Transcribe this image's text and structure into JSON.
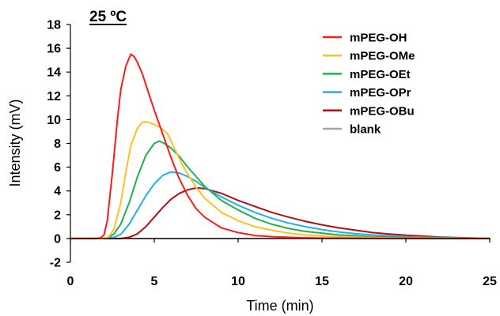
{
  "chart_data": {
    "type": "line",
    "title": "",
    "annotation": "25 ºC",
    "xlabel": "Time (min)",
    "ylabel": "Intensity (mV)",
    "xlim": [
      0,
      25
    ],
    "ylim": [
      -2,
      18
    ],
    "xticks": [
      "0",
      "5",
      "10",
      "15",
      "20",
      "25"
    ],
    "yticks": [
      "-2",
      "0",
      "2",
      "4",
      "6",
      "8",
      "10",
      "12",
      "14",
      "16",
      "18"
    ],
    "grid": false,
    "legend_position": "top-right",
    "series": [
      {
        "name": "mPEG-OH",
        "color": "#ff1a1a",
        "x": [
          0,
          1.5,
          1.8,
          2.0,
          2.2,
          2.5,
          2.8,
          3.0,
          3.3,
          3.6,
          3.8,
          4.0,
          4.3,
          4.6,
          5.0,
          5.5,
          6.0,
          6.5,
          7.0,
          7.5,
          8.0,
          9.0,
          10.0,
          11.0,
          12.0,
          13.0,
          14.0,
          15.0,
          17.0,
          25.0
        ],
        "y": [
          0,
          0,
          0.05,
          0.3,
          1.5,
          5.5,
          10.0,
          12.5,
          14.5,
          15.5,
          15.3,
          14.8,
          13.8,
          12.5,
          10.8,
          8.8,
          6.8,
          5.0,
          3.6,
          2.5,
          1.8,
          0.9,
          0.5,
          0.25,
          0.15,
          0.1,
          0.05,
          0.03,
          0.02,
          0
        ]
      },
      {
        "name": "mPEG-OMe",
        "color": "#ffc020",
        "x": [
          0,
          2.0,
          2.3,
          2.6,
          3.0,
          3.3,
          3.6,
          4.0,
          4.3,
          4.6,
          5.0,
          5.4,
          5.8,
          6.2,
          6.6,
          7.0,
          7.5,
          8.0,
          9.0,
          10.0,
          11.0,
          12.0,
          13.0,
          14.0,
          16.0,
          18.0,
          20.0,
          25.0
        ],
        "y": [
          0,
          0,
          0.15,
          0.8,
          3.0,
          5.6,
          7.8,
          9.3,
          9.8,
          9.8,
          9.6,
          9.3,
          8.8,
          7.6,
          6.4,
          5.4,
          4.3,
          3.4,
          2.2,
          1.5,
          1.0,
          0.7,
          0.45,
          0.3,
          0.15,
          0.08,
          0.03,
          0
        ]
      },
      {
        "name": "mPEG-OEt",
        "color": "#22b14c",
        "x": [
          0,
          2.0,
          2.3,
          2.6,
          3.0,
          3.5,
          4.0,
          4.5,
          5.0,
          5.3,
          5.6,
          6.0,
          6.5,
          7.0,
          7.5,
          8.0,
          9.0,
          10.0,
          11.0,
          12.0,
          13.0,
          14.0,
          15.0,
          16.0,
          18.0,
          20.0,
          22.0,
          25.0
        ],
        "y": [
          0,
          0,
          0.1,
          0.4,
          1.2,
          3.0,
          5.2,
          7.0,
          8.0,
          8.2,
          8.0,
          7.6,
          6.9,
          6.0,
          5.2,
          4.4,
          3.2,
          2.4,
          1.7,
          1.2,
          0.85,
          0.6,
          0.45,
          0.3,
          0.15,
          0.08,
          0.03,
          0
        ]
      },
      {
        "name": "mPEG-OPr",
        "color": "#22b0ea",
        "x": [
          0,
          2.2,
          2.6,
          3.0,
          3.5,
          4.0,
          4.5,
          5.0,
          5.5,
          6.0,
          6.5,
          7.0,
          7.5,
          8.0,
          9.0,
          10.0,
          11.0,
          12.0,
          13.0,
          14.0,
          15.0,
          16.0,
          17.0,
          18.0,
          20.0,
          22.0,
          25.0
        ],
        "y": [
          0,
          0,
          0.1,
          0.35,
          1.2,
          2.4,
          3.6,
          4.6,
          5.3,
          5.6,
          5.5,
          5.2,
          4.8,
          4.3,
          3.5,
          2.8,
          2.2,
          1.7,
          1.3,
          1.0,
          0.75,
          0.55,
          0.4,
          0.3,
          0.15,
          0.07,
          0
        ]
      },
      {
        "name": "mPEG-OBu",
        "color": "#b01010",
        "x": [
          0,
          3.0,
          3.5,
          4.0,
          4.5,
          5.0,
          5.5,
          6.0,
          6.5,
          7.0,
          7.5,
          8.0,
          8.5,
          9.0,
          9.5,
          10.0,
          11.0,
          12.0,
          13.0,
          14.0,
          15.0,
          16.0,
          17.0,
          18.0,
          19.0,
          20.0,
          21.0,
          22.0,
          23.0,
          25.0
        ],
        "y": [
          0,
          0,
          0.1,
          0.4,
          1.0,
          1.8,
          2.6,
          3.3,
          3.8,
          4.1,
          4.25,
          4.2,
          4.0,
          3.8,
          3.5,
          3.2,
          2.7,
          2.2,
          1.8,
          1.45,
          1.15,
          0.9,
          0.7,
          0.5,
          0.38,
          0.28,
          0.2,
          0.12,
          0.07,
          0
        ]
      },
      {
        "name": "blank",
        "color": "#a6a6a6",
        "x": [
          0,
          5,
          10,
          15,
          20,
          25
        ],
        "y": [
          0,
          0,
          0,
          0,
          0,
          0
        ]
      }
    ]
  }
}
